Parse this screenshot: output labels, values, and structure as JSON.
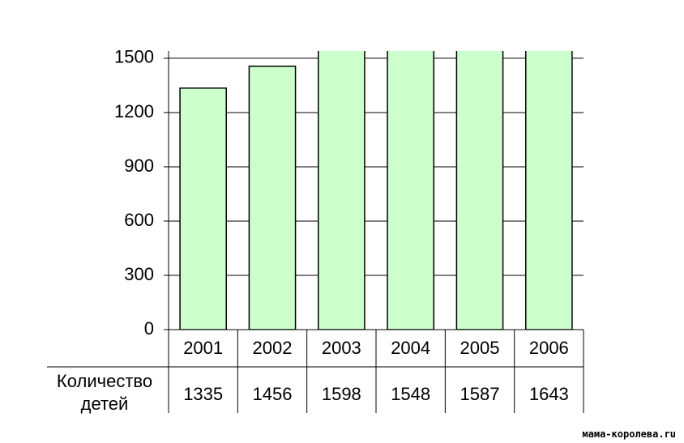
{
  "chart_data": {
    "type": "bar",
    "categories": [
      "2001",
      "2002",
      "2003",
      "2004",
      "2005",
      "2006"
    ],
    "values": [
      1335,
      1456,
      1598,
      1548,
      1587,
      1643
    ],
    "row_label": "Количество детей",
    "color": "#ccffcc",
    "ylim": [
      0,
      1540
    ],
    "yticks": [
      0,
      300,
      600,
      900,
      1200,
      1500
    ],
    "grid": true
  },
  "watermark": "мама-королева.ru"
}
